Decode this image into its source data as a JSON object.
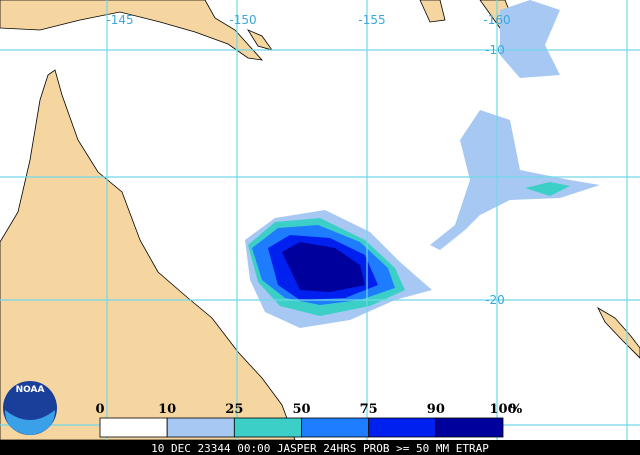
{
  "map": {
    "longitude_labels": [
      "-145",
      "-150",
      "-155",
      "-160"
    ],
    "latitude_labels": [
      "-10",
      "-20"
    ]
  },
  "legend": {
    "labels": [
      0,
      10,
      25,
      50,
      75,
      90,
      100
    ],
    "unit": "%",
    "colors": [
      "#ffffff",
      "#a8c8f4",
      "#3ccfc8",
      "#1e7cff",
      "#0020f0",
      "#00009c"
    ]
  },
  "logo": {
    "text": "NOAA"
  },
  "footer": {
    "text": "10 DEC 23344 00:00 JASPER 24HRS PROB >= 50 MM ETRAP"
  }
}
